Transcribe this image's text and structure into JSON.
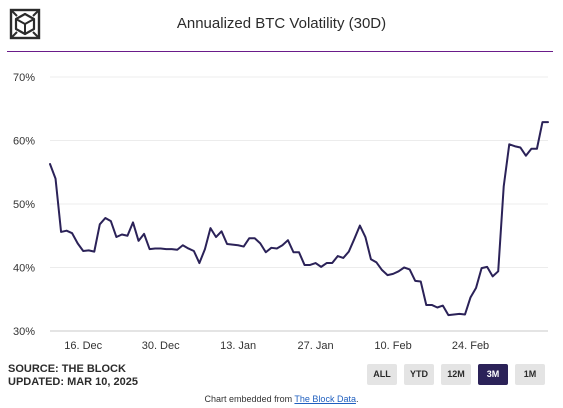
{
  "header": {
    "title": "Annualized BTC Volatility (30D)",
    "logo_icon": "the-block-logo-icon",
    "rule_color": "#6a1b8a"
  },
  "chart_data": {
    "type": "line",
    "title": "Annualized BTC Volatility (30D)",
    "xlabel": "",
    "ylabel": "",
    "ylim": [
      30,
      70
    ],
    "grid": "horizontal",
    "legend": "none",
    "y_ticks": [
      "30%",
      "40%",
      "50%",
      "60%",
      "70%"
    ],
    "x_ticks": [
      {
        "label": "16. Dec",
        "x": "2024-12-16"
      },
      {
        "label": "30. Dec",
        "x": "2024-12-30"
      },
      {
        "label": "13. Jan",
        "x": "2025-01-13"
      },
      {
        "label": "27. Jan",
        "x": "2025-01-27"
      },
      {
        "label": "10. Feb",
        "x": "2025-02-10"
      },
      {
        "label": "24. Feb",
        "x": "2025-02-24"
      }
    ],
    "series": [
      {
        "color": "#2b2258",
        "x": [
          "2024-12-10",
          "2024-12-11",
          "2024-12-12",
          "2024-12-13",
          "2024-12-14",
          "2024-12-15",
          "2024-12-16",
          "2024-12-17",
          "2024-12-18",
          "2024-12-19",
          "2024-12-20",
          "2024-12-21",
          "2024-12-22",
          "2024-12-23",
          "2024-12-24",
          "2024-12-25",
          "2024-12-26",
          "2024-12-27",
          "2024-12-28",
          "2024-12-29",
          "2024-12-30",
          "2024-12-31",
          "2025-01-01",
          "2025-01-02",
          "2025-01-03",
          "2025-01-04",
          "2025-01-05",
          "2025-01-06",
          "2025-01-07",
          "2025-01-08",
          "2025-01-09",
          "2025-01-10",
          "2025-01-11",
          "2025-01-12",
          "2025-01-13",
          "2025-01-14",
          "2025-01-15",
          "2025-01-16",
          "2025-01-17",
          "2025-01-18",
          "2025-01-19",
          "2025-01-20",
          "2025-01-21",
          "2025-01-22",
          "2025-01-23",
          "2025-01-24",
          "2025-01-25",
          "2025-01-26",
          "2025-01-27",
          "2025-01-28",
          "2025-01-29",
          "2025-01-30",
          "2025-01-31",
          "2025-02-01",
          "2025-02-02",
          "2025-02-03",
          "2025-02-04",
          "2025-02-05",
          "2025-02-06",
          "2025-02-07",
          "2025-02-08",
          "2025-02-09",
          "2025-02-10",
          "2025-02-11",
          "2025-02-12",
          "2025-02-13",
          "2025-02-14",
          "2025-02-15",
          "2025-02-16",
          "2025-02-17",
          "2025-02-18",
          "2025-02-19",
          "2025-02-20",
          "2025-02-21",
          "2025-02-22",
          "2025-02-23",
          "2025-02-24",
          "2025-02-25",
          "2025-02-26",
          "2025-02-27",
          "2025-02-28",
          "2025-03-01",
          "2025-03-02",
          "2025-03-03",
          "2025-03-04",
          "2025-03-05",
          "2025-03-06",
          "2025-03-07",
          "2025-03-08",
          "2025-03-09",
          "2025-03-10"
        ],
        "values": [
          56.3,
          54.0,
          45.6,
          45.8,
          45.4,
          43.8,
          42.6,
          42.7,
          42.5,
          46.8,
          47.8,
          47.3,
          44.8,
          45.2,
          45.0,
          47.1,
          44.2,
          45.3,
          42.9,
          43.0,
          43.0,
          42.9,
          42.9,
          42.8,
          43.5,
          43.0,
          42.6,
          40.7,
          42.9,
          46.2,
          44.8,
          45.7,
          43.7,
          43.6,
          43.5,
          43.3,
          44.6,
          44.6,
          43.8,
          42.4,
          43.1,
          43.0,
          43.5,
          44.3,
          42.4,
          42.4,
          40.4,
          40.4,
          40.7,
          40.1,
          40.7,
          40.7,
          41.8,
          41.5,
          42.5,
          44.5,
          46.6,
          44.8,
          41.3,
          40.8,
          39.6,
          38.8,
          39.0,
          39.4,
          40.0,
          39.7,
          37.9,
          37.8,
          34.1,
          34.1,
          33.7,
          34.0,
          32.5,
          32.6,
          32.7,
          32.6,
          35.3,
          36.8,
          39.9,
          40.1,
          38.6,
          39.4,
          52.8,
          59.4,
          59.1,
          58.9,
          57.6,
          58.7,
          58.7,
          62.9,
          62.9
        ]
      }
    ]
  },
  "source": {
    "line1": "SOURCE: THE BLOCK",
    "line2": "UPDATED: MAR 10, 2025"
  },
  "range_buttons": [
    {
      "label": "ALL",
      "active": false
    },
    {
      "label": "YTD",
      "active": false
    },
    {
      "label": "12M",
      "active": false
    },
    {
      "label": "3M",
      "active": true
    },
    {
      "label": "1M",
      "active": false
    }
  ],
  "footer": {
    "prefix": "Chart embedded from ",
    "link_text": "The Block Data",
    "suffix": "."
  }
}
